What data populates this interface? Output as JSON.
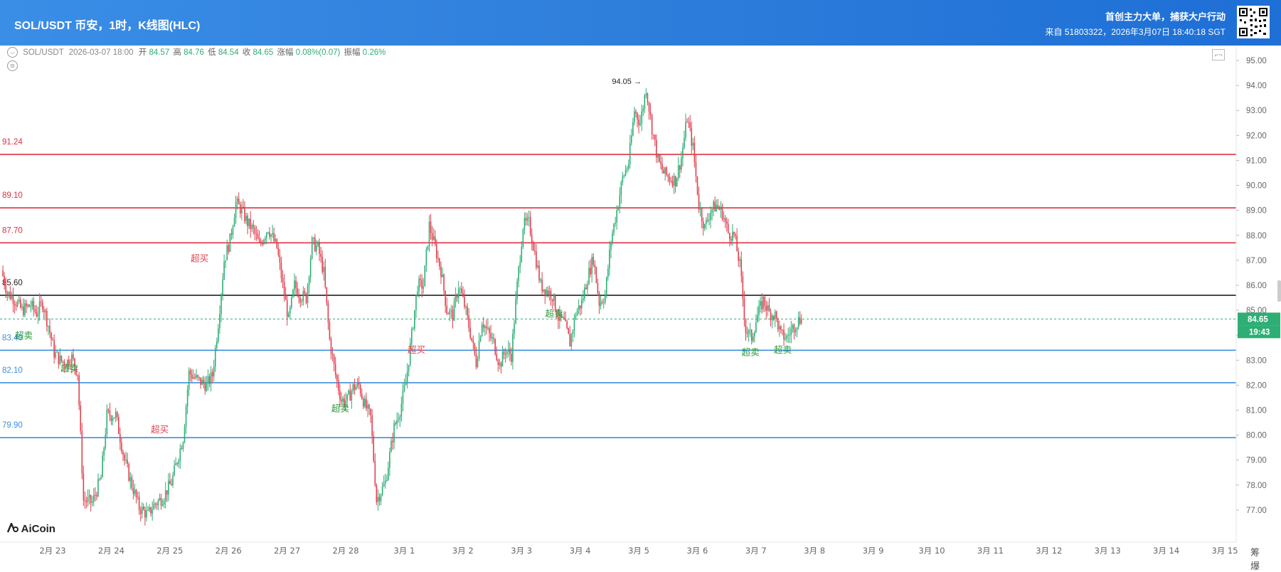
{
  "header": {
    "title": "SOL/USDT 币安，1时，K线图(HLC)",
    "slogan": "首创主力大单，捕获大户行动",
    "source": "来自 51803322，2026年3月07日 18:40:18 SGT"
  },
  "ohlc_bar": {
    "symbol": "SOL/USDT",
    "time": "2026-03-07 18:00",
    "open_label": "开",
    "open": "84.57",
    "high_label": "高",
    "high": "84.76",
    "low_label": "低",
    "low": "84.54",
    "close_label": "收",
    "close": "84.65",
    "change_label": "涨幅",
    "change": "0.08%(0.07)",
    "amp_label": "振幅",
    "amp": "0.26%"
  },
  "logo": "AiCoin",
  "bottom_icons": "筹 爆",
  "chart_data": {
    "type": "candlestick",
    "title": "SOL/USDT 币安，1时，K线图(HLC)",
    "x_ticks": [
      "2月 23",
      "2月 24",
      "2月 25",
      "2月 26",
      "2月 27",
      "2月 28",
      "3月 1",
      "3月 2",
      "3月 3",
      "3月 4",
      "3月 5",
      "3月 6",
      "3月 7",
      "3月 8",
      "3月 9",
      "3月 10",
      "3月 11",
      "3月 12",
      "3月 13",
      "3月 14",
      "3月 15"
    ],
    "y_ticks": [
      "95.00",
      "94.00",
      "93.00",
      "92.00",
      "91.00",
      "90.00",
      "89.00",
      "88.00",
      "87.00",
      "86.00",
      "85.00",
      "84.00",
      "83.00",
      "82.00",
      "81.00",
      "80.00",
      "79.00",
      "78.00",
      "77.00"
    ],
    "ylim": [
      76.6,
      95.2
    ],
    "current_price": "84.65",
    "countdown": "19:43",
    "max_marker": "94.05",
    "colors": {
      "up": "#2eae75",
      "down": "#e0414f",
      "resistance": "#e03040",
      "support": "#3b8fe0",
      "pivot": "#222222"
    },
    "levels": [
      {
        "value": 91.24,
        "label": "91.24",
        "kind": "resistance"
      },
      {
        "value": 89.1,
        "label": "89.10",
        "kind": "resistance"
      },
      {
        "value": 87.7,
        "label": "87.70",
        "kind": "resistance"
      },
      {
        "value": 85.6,
        "label": "85.60",
        "kind": "pivot"
      },
      {
        "value": 83.4,
        "label": "83.40",
        "kind": "support"
      },
      {
        "value": 82.1,
        "label": "82.10",
        "kind": "support"
      },
      {
        "value": 79.9,
        "label": "79.90",
        "kind": "support"
      }
    ],
    "signals": [
      {
        "text": "超卖",
        "t": 0.4,
        "price": 83.86,
        "kind": "sell"
      },
      {
        "text": "超卖",
        "t": 1.18,
        "price": 82.56,
        "kind": "sell"
      },
      {
        "text": "超买",
        "t": 2.72,
        "price": 80.1,
        "kind": "buy"
      },
      {
        "text": "超买",
        "t": 3.4,
        "price": 86.95,
        "kind": "buy"
      },
      {
        "text": "超卖",
        "t": 5.8,
        "price": 80.95,
        "kind": "sell"
      },
      {
        "text": "超买",
        "t": 7.1,
        "price": 83.3,
        "kind": "buy"
      },
      {
        "text": "超卖",
        "t": 9.45,
        "price": 84.75,
        "kind": "sell"
      },
      {
        "text": "超卖",
        "t": 12.8,
        "price": 83.2,
        "kind": "sell"
      },
      {
        "text": "超卖",
        "t": 13.35,
        "price": 83.3,
        "kind": "sell"
      }
    ],
    "closes": [
      [
        0.0,
        86.6
      ],
      [
        0.1,
        85.7
      ],
      [
        0.2,
        85.5
      ],
      [
        0.35,
        85.0
      ],
      [
        0.5,
        85.2
      ],
      [
        0.6,
        84.9
      ],
      [
        0.7,
        85.3
      ],
      [
        0.8,
        84.4
      ],
      [
        0.9,
        83.3
      ],
      [
        1.0,
        83.0
      ],
      [
        1.1,
        82.9
      ],
      [
        1.2,
        83.1
      ],
      [
        1.3,
        82.5
      ],
      [
        1.4,
        77.4
      ],
      [
        1.55,
        77.3
      ],
      [
        1.7,
        78.3
      ],
      [
        1.8,
        80.8
      ],
      [
        1.95,
        80.8
      ],
      [
        2.1,
        79.0
      ],
      [
        2.2,
        78.2
      ],
      [
        2.35,
        77.1
      ],
      [
        2.5,
        76.8
      ],
      [
        2.6,
        77.2
      ],
      [
        2.75,
        77.5
      ],
      [
        2.9,
        78.1
      ],
      [
        3.0,
        79.0
      ],
      [
        3.1,
        79.9
      ],
      [
        3.2,
        82.5
      ],
      [
        3.35,
        82.2
      ],
      [
        3.5,
        82.0
      ],
      [
        3.6,
        82.4
      ],
      [
        3.7,
        84.5
      ],
      [
        3.8,
        87.0
      ],
      [
        3.9,
        87.8
      ],
      [
        4.0,
        89.3
      ],
      [
        4.1,
        89.0
      ],
      [
        4.2,
        88.5
      ],
      [
        4.3,
        88.2
      ],
      [
        4.4,
        87.6
      ],
      [
        4.55,
        88.3
      ],
      [
        4.7,
        87.5
      ],
      [
        4.8,
        86.0
      ],
      [
        4.9,
        84.6
      ],
      [
        5.0,
        86.0
      ],
      [
        5.1,
        85.6
      ],
      [
        5.2,
        85.5
      ],
      [
        5.3,
        87.7
      ],
      [
        5.4,
        87.5
      ],
      [
        5.5,
        86.5
      ],
      [
        5.6,
        83.8
      ],
      [
        5.7,
        82.4
      ],
      [
        5.8,
        81.4
      ],
      [
        5.9,
        81.4
      ],
      [
        6.0,
        81.9
      ],
      [
        6.1,
        82.0
      ],
      [
        6.2,
        81.2
      ],
      [
        6.3,
        80.7
      ],
      [
        6.4,
        77.4
      ],
      [
        6.55,
        78.1
      ],
      [
        6.7,
        80.3
      ],
      [
        6.8,
        81.0
      ],
      [
        6.9,
        82.1
      ],
      [
        7.0,
        84.0
      ],
      [
        7.1,
        86.0
      ],
      [
        7.2,
        86.0
      ],
      [
        7.3,
        88.4
      ],
      [
        7.4,
        87.5
      ],
      [
        7.5,
        86.6
      ],
      [
        7.6,
        85.0
      ],
      [
        7.7,
        84.8
      ],
      [
        7.8,
        86.0
      ],
      [
        7.9,
        85.2
      ],
      [
        8.0,
        84.1
      ],
      [
        8.1,
        82.9
      ],
      [
        8.2,
        84.6
      ],
      [
        8.3,
        84.1
      ],
      [
        8.4,
        83.7
      ],
      [
        8.5,
        82.8
      ],
      [
        8.6,
        83.4
      ],
      [
        8.7,
        83.2
      ],
      [
        8.8,
        86.0
      ],
      [
        8.9,
        88.4
      ],
      [
        9.0,
        88.5
      ],
      [
        9.1,
        87.3
      ],
      [
        9.2,
        86.0
      ],
      [
        9.3,
        85.8
      ],
      [
        9.4,
        85.6
      ],
      [
        9.5,
        84.7
      ],
      [
        9.6,
        84.5
      ],
      [
        9.7,
        83.7
      ],
      [
        9.8,
        84.9
      ],
      [
        9.9,
        85.3
      ],
      [
        10.0,
        86.3
      ],
      [
        10.1,
        87.1
      ],
      [
        10.2,
        85.3
      ],
      [
        10.3,
        85.6
      ],
      [
        10.4,
        87.8
      ],
      [
        10.5,
        89.0
      ],
      [
        10.6,
        90.3
      ],
      [
        10.7,
        90.9
      ],
      [
        10.8,
        93.0
      ],
      [
        10.9,
        92.5
      ],
      [
        11.0,
        93.9
      ],
      [
        11.1,
        92.3
      ],
      [
        11.2,
        91.0
      ],
      [
        11.3,
        90.5
      ],
      [
        11.4,
        90.3
      ],
      [
        11.5,
        90.2
      ],
      [
        11.6,
        91.1
      ],
      [
        11.7,
        92.7
      ],
      [
        11.8,
        91.5
      ],
      [
        11.9,
        89.2
      ],
      [
        12.0,
        88.3
      ],
      [
        12.1,
        89.0
      ],
      [
        12.2,
        89.2
      ],
      [
        12.3,
        88.9
      ],
      [
        12.4,
        88.1
      ],
      [
        12.5,
        88.0
      ],
      [
        12.6,
        86.8
      ],
      [
        12.7,
        84.2
      ],
      [
        12.8,
        83.9
      ],
      [
        12.9,
        84.8
      ],
      [
        13.0,
        85.4
      ],
      [
        13.1,
        84.9
      ],
      [
        13.2,
        84.8
      ],
      [
        13.3,
        84.0
      ],
      [
        13.4,
        83.9
      ],
      [
        13.5,
        84.3
      ],
      [
        13.6,
        84.6
      ],
      [
        13.65,
        84.65
      ]
    ]
  }
}
